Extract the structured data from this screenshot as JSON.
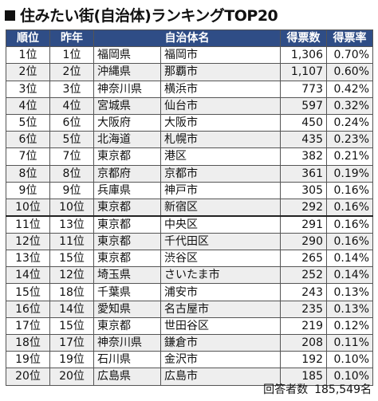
{
  "title": "住みたい街(自治体)ランキングTOP20",
  "columns": [
    "順位",
    "昨年",
    "自治体名",
    "得票数",
    "得票率"
  ],
  "rows": [
    {
      "rank": "1位",
      "prev": "1位",
      "pref": "福岡県",
      "city": "福岡市",
      "votes": "1,306",
      "rate": "0.70%"
    },
    {
      "rank": "2位",
      "prev": "2位",
      "pref": "沖縄県",
      "city": "那覇市",
      "votes": "1,107",
      "rate": "0.60%"
    },
    {
      "rank": "3位",
      "prev": "3位",
      "pref": "神奈川県",
      "city": "横浜市",
      "votes": "773",
      "rate": "0.42%"
    },
    {
      "rank": "4位",
      "prev": "4位",
      "pref": "宮城県",
      "city": "仙台市",
      "votes": "597",
      "rate": "0.32%"
    },
    {
      "rank": "5位",
      "prev": "6位",
      "pref": "大阪府",
      "city": "大阪市",
      "votes": "450",
      "rate": "0.24%"
    },
    {
      "rank": "6位",
      "prev": "5位",
      "pref": "北海道",
      "city": "札幌市",
      "votes": "435",
      "rate": "0.23%"
    },
    {
      "rank": "7位",
      "prev": "7位",
      "pref": "東京都",
      "city": "港区",
      "votes": "382",
      "rate": "0.21%"
    },
    {
      "rank": "8位",
      "prev": "8位",
      "pref": "京都府",
      "city": "京都市",
      "votes": "361",
      "rate": "0.19%"
    },
    {
      "rank": "9位",
      "prev": "9位",
      "pref": "兵庫県",
      "city": "神戸市",
      "votes": "305",
      "rate": "0.16%"
    },
    {
      "rank": "10位",
      "prev": "10位",
      "pref": "東京都",
      "city": "新宿区",
      "votes": "292",
      "rate": "0.16%"
    },
    {
      "rank": "11位",
      "prev": "13位",
      "pref": "東京都",
      "city": "中央区",
      "votes": "291",
      "rate": "0.16%"
    },
    {
      "rank": "12位",
      "prev": "11位",
      "pref": "東京都",
      "city": "千代田区",
      "votes": "290",
      "rate": "0.16%"
    },
    {
      "rank": "13位",
      "prev": "15位",
      "pref": "東京都",
      "city": "渋谷区",
      "votes": "265",
      "rate": "0.14%"
    },
    {
      "rank": "14位",
      "prev": "12位",
      "pref": "埼玉県",
      "city": "さいたま市",
      "votes": "252",
      "rate": "0.14%"
    },
    {
      "rank": "15位",
      "prev": "18位",
      "pref": "千葉県",
      "city": "浦安市",
      "votes": "243",
      "rate": "0.13%"
    },
    {
      "rank": "16位",
      "prev": "14位",
      "pref": "愛知県",
      "city": "名古屋市",
      "votes": "235",
      "rate": "0.13%"
    },
    {
      "rank": "17位",
      "prev": "15位",
      "pref": "東京都",
      "city": "世田谷区",
      "votes": "219",
      "rate": "0.12%"
    },
    {
      "rank": "18位",
      "prev": "17位",
      "pref": "神奈川県",
      "city": "鎌倉市",
      "votes": "208",
      "rate": "0.11%"
    },
    {
      "rank": "19位",
      "prev": "19位",
      "pref": "石川県",
      "city": "金沢市",
      "votes": "192",
      "rate": "0.10%"
    },
    {
      "rank": "20位",
      "prev": "20位",
      "pref": "広島県",
      "city": "広島市",
      "votes": "185",
      "rate": "0.10%"
    }
  ],
  "footer": {
    "label": "回答者数",
    "value": "185,549名"
  },
  "colors": {
    "header_bg": "#2f4d86",
    "header_text": "#ffffff",
    "stripe": "#eeeeee"
  }
}
